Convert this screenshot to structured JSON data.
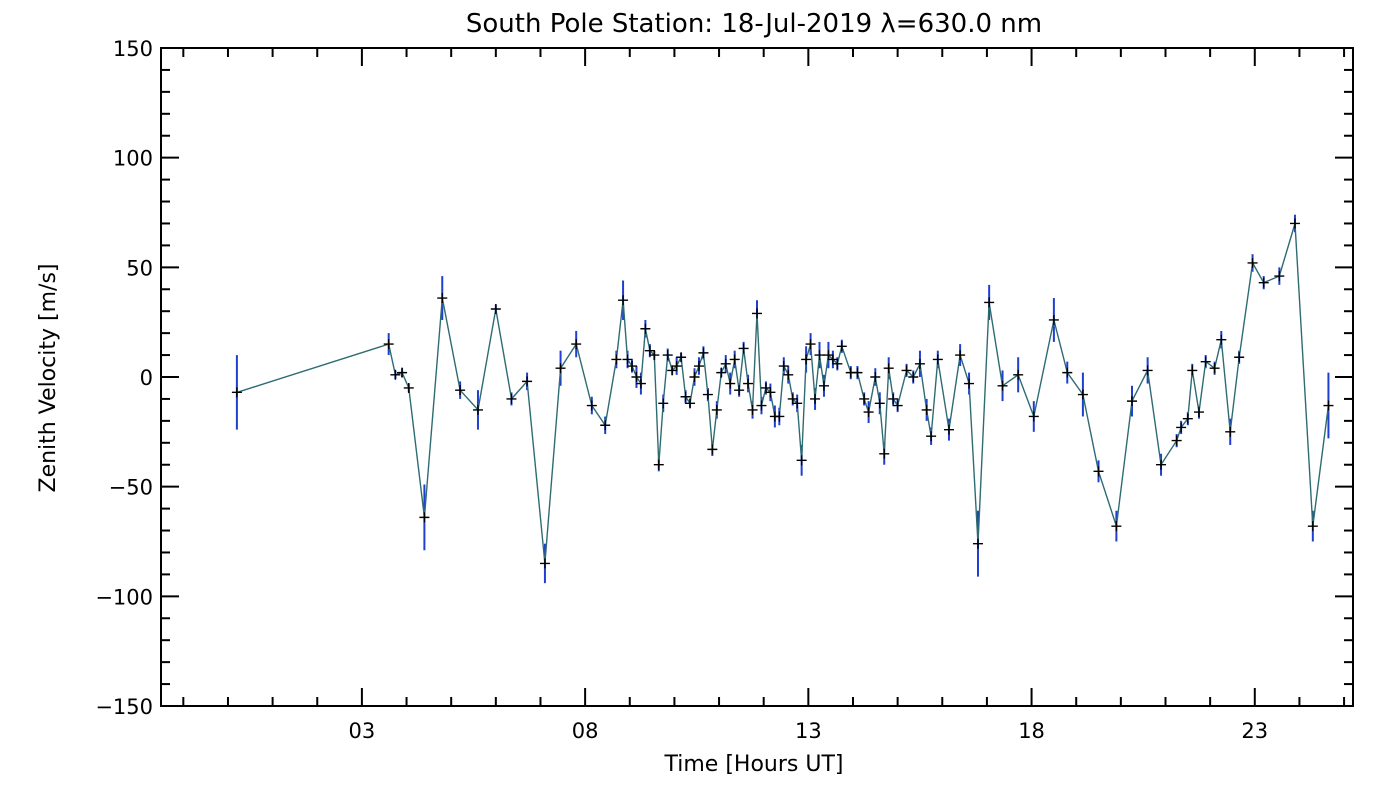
{
  "chart_data": {
    "type": "line",
    "title": "South Pole Station: 18-Jul-2019 λ=630.0 nm",
    "xlabel": "Time [Hours UT]",
    "ylabel": "Zenith Velocity [m/s]",
    "xlim": [
      -1.5,
      25.2
    ],
    "ylim": [
      -150,
      150
    ],
    "xticks": [
      3,
      8,
      13,
      18,
      23
    ],
    "xtick_labels": [
      "03",
      "08",
      "13",
      "18",
      "23"
    ],
    "xminor_step": 1,
    "yticks": [
      -150,
      -100,
      -50,
      0,
      50,
      100,
      150
    ],
    "ytick_labels": [
      "−150",
      "−100",
      "−50",
      "0",
      "50",
      "100",
      "150"
    ],
    "yminor_step": 10,
    "colors": {
      "line": "#2e6b73",
      "errorbar": "#1f3fd1",
      "marker": "#000000",
      "axis": "#000000"
    },
    "series": [
      {
        "name": "Zenith Velocity",
        "points": [
          [
            0.2,
            -7,
            17
          ],
          [
            3.6,
            15,
            5
          ],
          [
            3.75,
            1,
            2
          ],
          [
            3.9,
            2,
            2
          ],
          [
            4.05,
            -5,
            2
          ],
          [
            4.4,
            -64,
            15
          ],
          [
            4.8,
            36,
            10
          ],
          [
            5.2,
            -6,
            4
          ],
          [
            5.6,
            -15,
            9
          ],
          [
            6.0,
            31,
            2
          ],
          [
            6.35,
            -10,
            3
          ],
          [
            6.7,
            -2,
            4
          ],
          [
            7.1,
            -85,
            9
          ],
          [
            7.45,
            4,
            8
          ],
          [
            7.8,
            15,
            6
          ],
          [
            8.15,
            -13,
            4
          ],
          [
            8.45,
            -22,
            4
          ],
          [
            8.7,
            8,
            4
          ],
          [
            8.85,
            35,
            9
          ],
          [
            8.95,
            8,
            4
          ],
          [
            9.05,
            5,
            3
          ],
          [
            9.15,
            0,
            5
          ],
          [
            9.25,
            -3,
            5
          ],
          [
            9.35,
            22,
            4
          ],
          [
            9.45,
            12,
            3
          ],
          [
            9.55,
            10,
            2
          ],
          [
            9.65,
            -40,
            3
          ],
          [
            9.75,
            -12,
            4
          ],
          [
            9.85,
            10,
            3
          ],
          [
            9.95,
            3,
            2
          ],
          [
            10.05,
            5,
            4
          ],
          [
            10.15,
            9,
            2
          ],
          [
            10.25,
            -9,
            3
          ],
          [
            10.35,
            -12,
            2
          ],
          [
            10.45,
            0,
            4
          ],
          [
            10.55,
            5,
            4
          ],
          [
            10.65,
            11,
            3
          ],
          [
            10.75,
            -8,
            3
          ],
          [
            10.85,
            -33,
            3
          ],
          [
            10.95,
            -15,
            4
          ],
          [
            11.05,
            2,
            2
          ],
          [
            11.15,
            6,
            4
          ],
          [
            11.25,
            -3,
            5
          ],
          [
            11.35,
            8,
            4
          ],
          [
            11.45,
            -6,
            3
          ],
          [
            11.55,
            13,
            3
          ],
          [
            11.65,
            -3,
            4
          ],
          [
            11.75,
            -15,
            4
          ],
          [
            11.85,
            29,
            6
          ],
          [
            11.95,
            -13,
            4
          ],
          [
            12.05,
            -5,
            3
          ],
          [
            12.15,
            -7,
            4
          ],
          [
            12.25,
            -18,
            5
          ],
          [
            12.35,
            -18,
            4
          ],
          [
            12.45,
            5,
            4
          ],
          [
            12.55,
            1,
            4
          ],
          [
            12.65,
            -10,
            3
          ],
          [
            12.75,
            -12,
            4
          ],
          [
            12.85,
            -38,
            7
          ],
          [
            12.95,
            8,
            6
          ],
          [
            13.05,
            15,
            5
          ],
          [
            13.15,
            -10,
            5
          ],
          [
            13.25,
            10,
            6
          ],
          [
            13.35,
            -4,
            5
          ],
          [
            13.45,
            10,
            6
          ],
          [
            13.55,
            8,
            4
          ],
          [
            13.65,
            6,
            3
          ],
          [
            13.75,
            14,
            3
          ],
          [
            13.95,
            2,
            3
          ],
          [
            14.1,
            2,
            3
          ],
          [
            14.25,
            -10,
            3
          ],
          [
            14.35,
            -16,
            5
          ],
          [
            14.5,
            0,
            4
          ],
          [
            14.6,
            -12,
            5
          ],
          [
            14.7,
            -35,
            5
          ],
          [
            14.8,
            4,
            5
          ],
          [
            14.9,
            -10,
            3
          ],
          [
            15.0,
            -13,
            3
          ],
          [
            15.2,
            3,
            3
          ],
          [
            15.35,
            0,
            3
          ],
          [
            15.5,
            6,
            6
          ],
          [
            15.65,
            -15,
            5
          ],
          [
            15.75,
            -27,
            4
          ],
          [
            15.9,
            8,
            4
          ],
          [
            16.15,
            -24,
            5
          ],
          [
            16.4,
            10,
            5
          ],
          [
            16.6,
            -3,
            5
          ],
          [
            16.8,
            -76,
            15
          ],
          [
            17.05,
            34,
            8
          ],
          [
            17.35,
            -4,
            7
          ],
          [
            17.7,
            1,
            8
          ],
          [
            18.05,
            -18,
            7
          ],
          [
            18.5,
            26,
            10
          ],
          [
            18.8,
            2,
            5
          ],
          [
            19.15,
            -8,
            10
          ],
          [
            19.5,
            -43,
            5
          ],
          [
            19.9,
            -68,
            7
          ],
          [
            20.25,
            -11,
            7
          ],
          [
            20.6,
            3,
            6
          ],
          [
            20.9,
            -40,
            5
          ],
          [
            21.25,
            -29,
            3
          ],
          [
            21.35,
            -23,
            3
          ],
          [
            21.5,
            -19,
            3
          ],
          [
            21.6,
            3,
            3
          ],
          [
            21.75,
            -16,
            3
          ],
          [
            21.9,
            7,
            3
          ],
          [
            22.1,
            4,
            3
          ],
          [
            22.25,
            17,
            4
          ],
          [
            22.45,
            -25,
            6
          ],
          [
            22.65,
            9,
            3
          ],
          [
            22.95,
            52,
            4
          ],
          [
            23.2,
            43,
            3
          ],
          [
            23.55,
            46,
            4
          ],
          [
            23.9,
            70,
            4
          ],
          [
            24.3,
            -68,
            7
          ],
          [
            24.65,
            -13,
            15
          ]
        ]
      }
    ]
  }
}
